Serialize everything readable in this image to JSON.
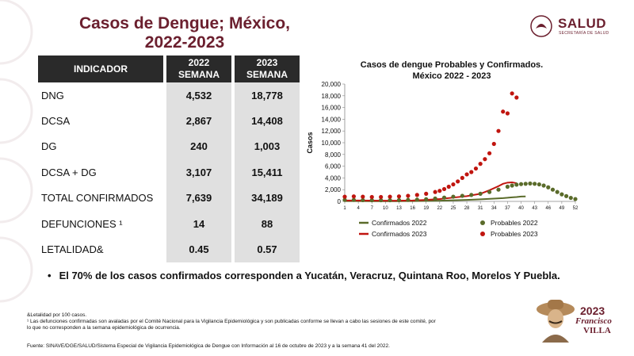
{
  "header": {
    "title_line1": "Casos de Dengue; México,",
    "title_line2": "2022-2023",
    "logo_word": "SALUD",
    "logo_sub": "SECRETARÍA DE SALUD"
  },
  "table": {
    "col_indicator": "INDICADOR",
    "col_2022_year": "2022",
    "col_2022_sub": "SEMANA",
    "col_2023_year": "2023",
    "col_2023_sub": "SEMANA",
    "rows": [
      {
        "label": "DNG",
        "v2022": "4,532",
        "v2023": "18,778"
      },
      {
        "label": "DCSA",
        "v2022": "2,867",
        "v2023": "14,408"
      },
      {
        "label": "DG",
        "v2022": "240",
        "v2023": "1,003"
      },
      {
        "label": "DCSA + DG",
        "v2022": "3,107",
        "v2023": "15,411"
      },
      {
        "label": "TOTAL CONFIRMADOS",
        "v2022": "7,639",
        "v2023": "34,189"
      },
      {
        "label": "DEFUNCIONES ¹",
        "v2022": "14",
        "v2023": "88"
      },
      {
        "label": "LETALIDAD&",
        "v2022": "0.45",
        "v2023": "0.57"
      }
    ]
  },
  "bullet": "El 70% de los casos confirmados corresponden a Yucatán, Veracruz, Quintana Roo, Morelos Y Puebla.",
  "notes": {
    "line1": "&Letalidad por 100 casos.",
    "line2": "¹ Las defunciones confirmadas son avaladas por el Comité Nacional para la Vigilancia Epidemiológica y son publicadas conforme se llevan a cabo las sesiones de este comité, por",
    "line3": "lo que no corresponden a la semana epidemiológica de ocurrencia."
  },
  "source": "Fuente: SINAVE/DGE/SALUD/Sistema Especial de Vigilancia Epidemiológica de Dengue con Información al 16 de octubre de 2023 y a la semana 41 del 2022.",
  "badge": {
    "year": "2023",
    "name1": "Francisco",
    "name2": "VILLA"
  },
  "colors": {
    "brand": "#6b1f2e",
    "green": "#5a6b2a",
    "red": "#c0150f"
  },
  "chart_data": {
    "type": "line",
    "title_line1": "Casos de dengue Probables y Confirmados.",
    "title_line2": "México 2022 - 2023",
    "ylabel": "Casos",
    "xlabel": "",
    "ylim": [
      0,
      20000
    ],
    "yticks": [
      "0",
      "2,000",
      "4,000",
      "6,000",
      "8,000",
      "10,000",
      "12,000",
      "14,000",
      "16,000",
      "18,000",
      "20,000"
    ],
    "xticks": [
      "1",
      "4",
      "7",
      "10",
      "13",
      "16",
      "19",
      "22",
      "25",
      "28",
      "31",
      "34",
      "37",
      "40",
      "43",
      "46",
      "49",
      "52"
    ],
    "xlim": [
      1,
      52
    ],
    "series": [
      {
        "name": "Confirmados 2022",
        "kind": "line",
        "color": "#5a6b2a",
        "x": [
          1,
          4,
          7,
          10,
          13,
          16,
          19,
          22,
          25,
          28,
          31,
          34,
          36,
          37,
          38,
          39,
          40,
          41
        ],
        "y": [
          50,
          50,
          40,
          40,
          40,
          50,
          80,
          120,
          180,
          250,
          350,
          480,
          560,
          620,
          700,
          750,
          820,
          850
        ]
      },
      {
        "name": "Confirmados 2023",
        "kind": "line",
        "color": "#c0150f",
        "x": [
          1,
          4,
          7,
          10,
          13,
          16,
          19,
          22,
          25,
          28,
          31,
          33,
          35,
          36,
          37,
          38,
          39
        ],
        "y": [
          150,
          150,
          130,
          120,
          120,
          150,
          250,
          400,
          650,
          900,
          1300,
          1900,
          2600,
          3000,
          3200,
          3250,
          3100
        ]
      },
      {
        "name": "Probables 2022",
        "kind": "marker",
        "color": "#5a6b2a",
        "x": [
          1,
          3,
          5,
          7,
          9,
          11,
          13,
          15,
          17,
          19,
          21,
          23,
          25,
          27,
          29,
          31,
          33,
          35,
          37,
          38,
          39,
          40,
          41,
          42,
          43,
          44,
          45,
          46,
          47,
          48,
          49,
          50,
          51,
          52
        ],
        "y": [
          250,
          250,
          220,
          200,
          200,
          200,
          220,
          250,
          300,
          380,
          500,
          650,
          800,
          950,
          1100,
          1300,
          1600,
          2000,
          2500,
          2700,
          2850,
          2950,
          3000,
          3050,
          3000,
          2900,
          2700,
          2400,
          2000,
          1600,
          1200,
          900,
          600,
          400
        ]
      },
      {
        "name": "Probables 2023",
        "kind": "marker",
        "color": "#c0150f",
        "x": [
          1,
          3,
          5,
          7,
          9,
          11,
          13,
          15,
          17,
          19,
          21,
          22,
          23,
          24,
          25,
          26,
          27,
          28,
          29,
          30,
          31,
          32,
          33,
          34,
          35,
          36,
          37,
          38,
          39
        ],
        "y": [
          800,
          850,
          800,
          750,
          750,
          800,
          850,
          950,
          1100,
          1300,
          1600,
          1800,
          2100,
          2500,
          2900,
          3400,
          4000,
          4600,
          5000,
          5600,
          6400,
          7200,
          8200,
          9800,
          12000,
          15300,
          15000,
          18400,
          17700
        ]
      }
    ],
    "legend_position": "bottom",
    "grid": false
  }
}
